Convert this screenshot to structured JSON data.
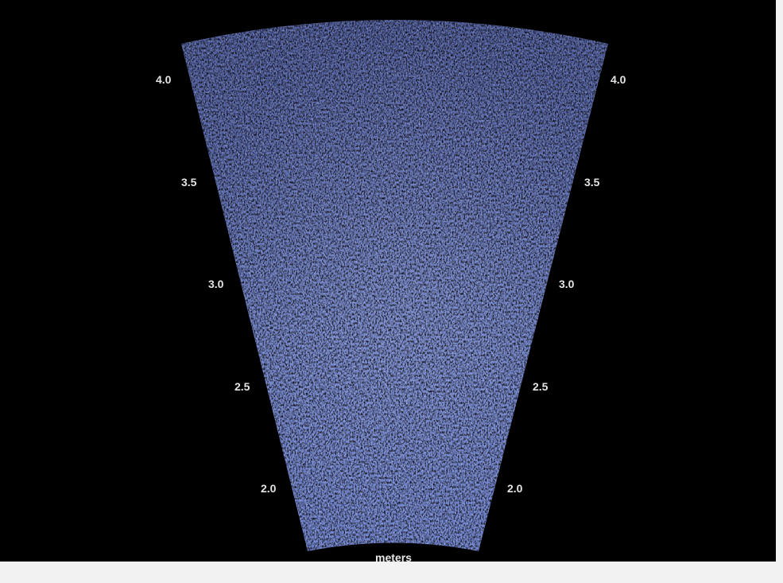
{
  "sonar": {
    "unit": "meters",
    "left_labels": [
      "4.0",
      "3.5",
      "3.0",
      "2.5",
      "2.0"
    ],
    "right_labels": [
      "4.0",
      "3.5",
      "3.0",
      "2.5",
      "2.0"
    ],
    "range_min": 1.7,
    "range_max": 4.1,
    "colors": {
      "background": "#000000",
      "fan_base": "#5566aa",
      "fan_highlight": "#8fa3e6",
      "text": "#e4e4e4"
    }
  }
}
